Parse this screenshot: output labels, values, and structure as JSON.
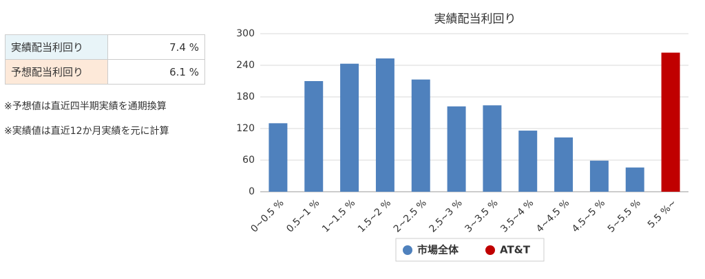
{
  "table": {
    "rows": [
      [
        "実績配当利回り",
        "7.4 %"
      ],
      [
        "予想配当利回り",
        "6.1 %"
      ]
    ]
  },
  "notes": [
    "※予想値は直近四半期実績を通期換算",
    "※実績値は直近12か月実績を元に計算"
  ],
  "chart_data": {
    "type": "bar",
    "title": "実績配当利回り",
    "categories": [
      "0~0.5 %",
      "0.5~1 %",
      "1~1.5 %",
      "1.5~2 %",
      "2~2.5 %",
      "2.5~3 %",
      "3~3.5 %",
      "3.5~4 %",
      "4~4.5 %",
      "4.5~5 %",
      "5~5.5 %",
      "5.5 %~"
    ],
    "series": [
      {
        "name": "市場全体",
        "color": "#4f81bd",
        "values": [
          130,
          210,
          243,
          253,
          213,
          162,
          164,
          116,
          103,
          59,
          46,
          null
        ]
      },
      {
        "name": "AT&T",
        "color": "#c00000",
        "values": [
          null,
          null,
          null,
          null,
          null,
          null,
          null,
          null,
          null,
          null,
          null,
          264
        ]
      }
    ],
    "ylim": [
      0,
      300
    ],
    "yticks": [
      0,
      60,
      120,
      180,
      240,
      300
    ],
    "grid": true,
    "legend": "bottom"
  }
}
